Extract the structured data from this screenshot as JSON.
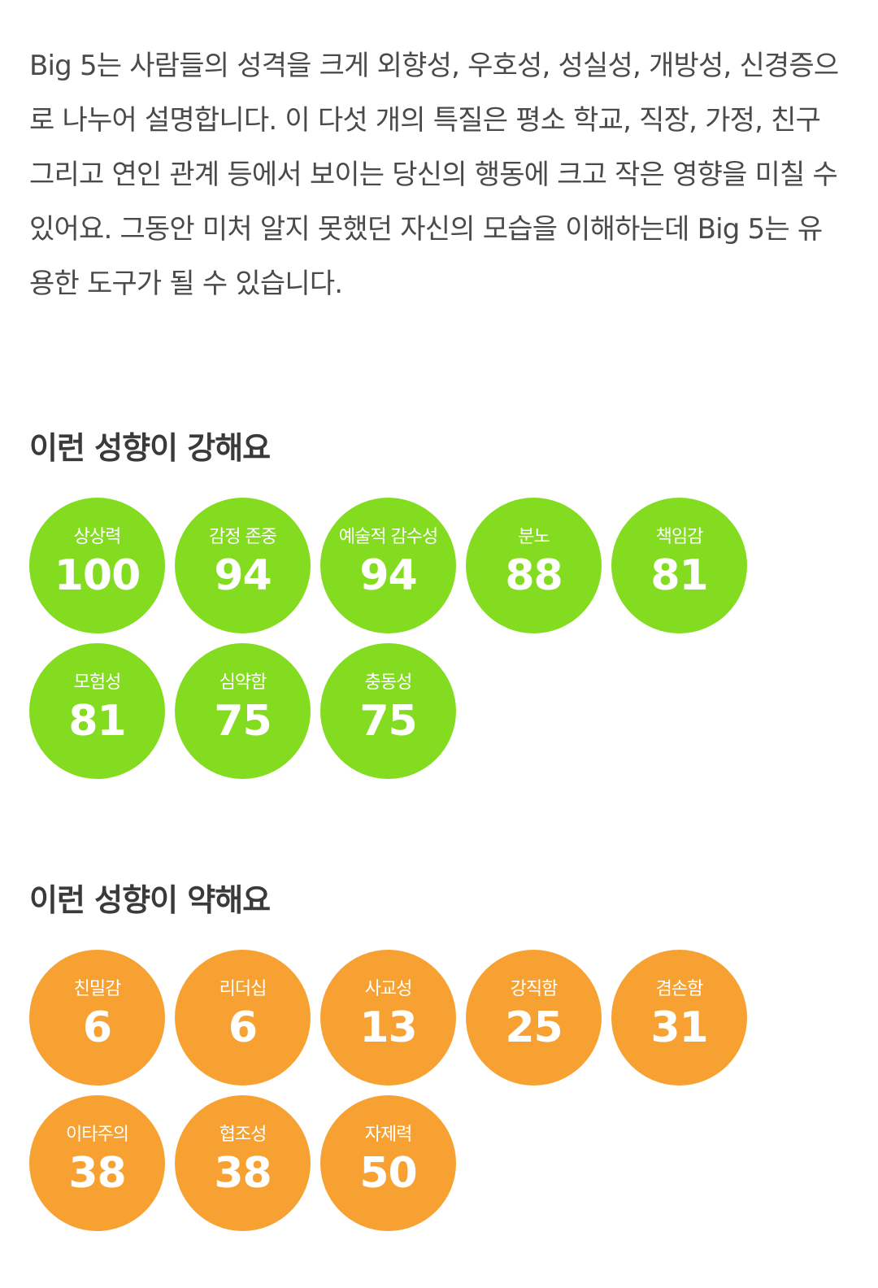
{
  "intro": "Big 5는 사람들의 성격을 크게 외향성, 우호성, 성실성, 개방성, 신경증으로 나누어 설명합니다. 이 다섯 개의 특질은 평소 학교, 직장, 가정, 친구 그리고 연인 관계 등에서 보이는 당신의 행동에 크고 작은 영향을 미칠 수 있어요. 그동안 미처 알지 못했던 자신의 모습을 이해하는데 Big 5는 유용한 도구가 될 수 있습니다.",
  "colors": {
    "strong": "#84dc20",
    "weak": "#f7a132"
  },
  "strong": {
    "title": "이런 성향이 강해요",
    "traits": [
      {
        "label": "상상력",
        "value": "100"
      },
      {
        "label": "감정 존중",
        "value": "94"
      },
      {
        "label": "예술적 감수성",
        "value": "94"
      },
      {
        "label": "분노",
        "value": "88"
      },
      {
        "label": "책임감",
        "value": "81"
      },
      {
        "label": "모험성",
        "value": "81"
      },
      {
        "label": "심약함",
        "value": "75"
      },
      {
        "label": "충동성",
        "value": "75"
      }
    ]
  },
  "weak": {
    "title": "이런 성향이 약해요",
    "traits": [
      {
        "label": "친밀감",
        "value": "6"
      },
      {
        "label": "리더십",
        "value": "6"
      },
      {
        "label": "사교성",
        "value": "13"
      },
      {
        "label": "강직함",
        "value": "25"
      },
      {
        "label": "겸손함",
        "value": "31"
      },
      {
        "label": "이타주의",
        "value": "38"
      },
      {
        "label": "협조성",
        "value": "38"
      },
      {
        "label": "자제력",
        "value": "50"
      }
    ]
  }
}
